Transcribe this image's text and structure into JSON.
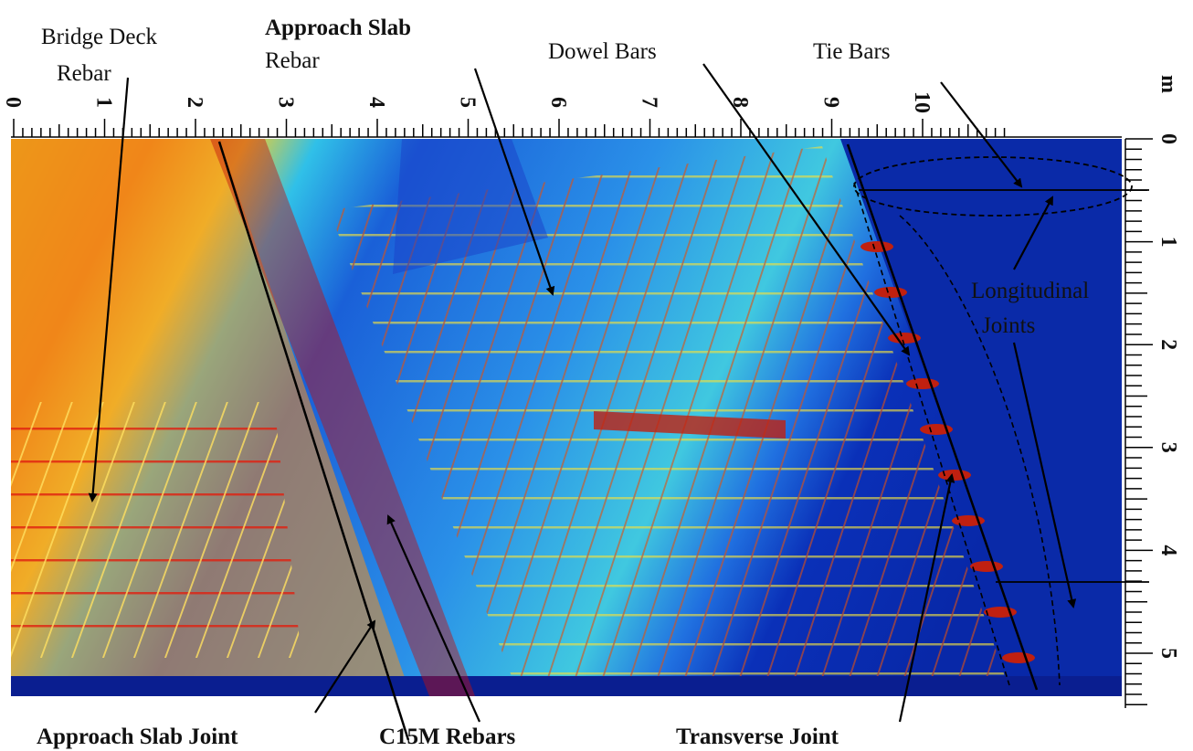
{
  "axes": {
    "unit": "m",
    "top_labels": [
      0,
      1,
      2,
      3,
      4,
      5,
      6,
      7,
      8,
      9,
      10
    ],
    "right_labels": [
      0,
      1,
      2,
      3,
      4,
      5
    ]
  },
  "annotations": [
    {
      "lines": [
        "Bridge Deck",
        "Rebar"
      ]
    },
    {
      "lines": [
        "Approach Slab",
        "Rebar"
      ]
    },
    {
      "lines": [
        "Dowel Bars"
      ]
    },
    {
      "lines": [
        "Tie Bars"
      ]
    },
    {
      "lines": [
        "Longitudinal",
        "Joints"
      ]
    },
    {
      "lines": [
        "Approach Slab Joint"
      ]
    },
    {
      "lines": [
        "C15M Rebars"
      ]
    },
    {
      "lines": [
        "Transverse Joint"
      ]
    }
  ]
}
